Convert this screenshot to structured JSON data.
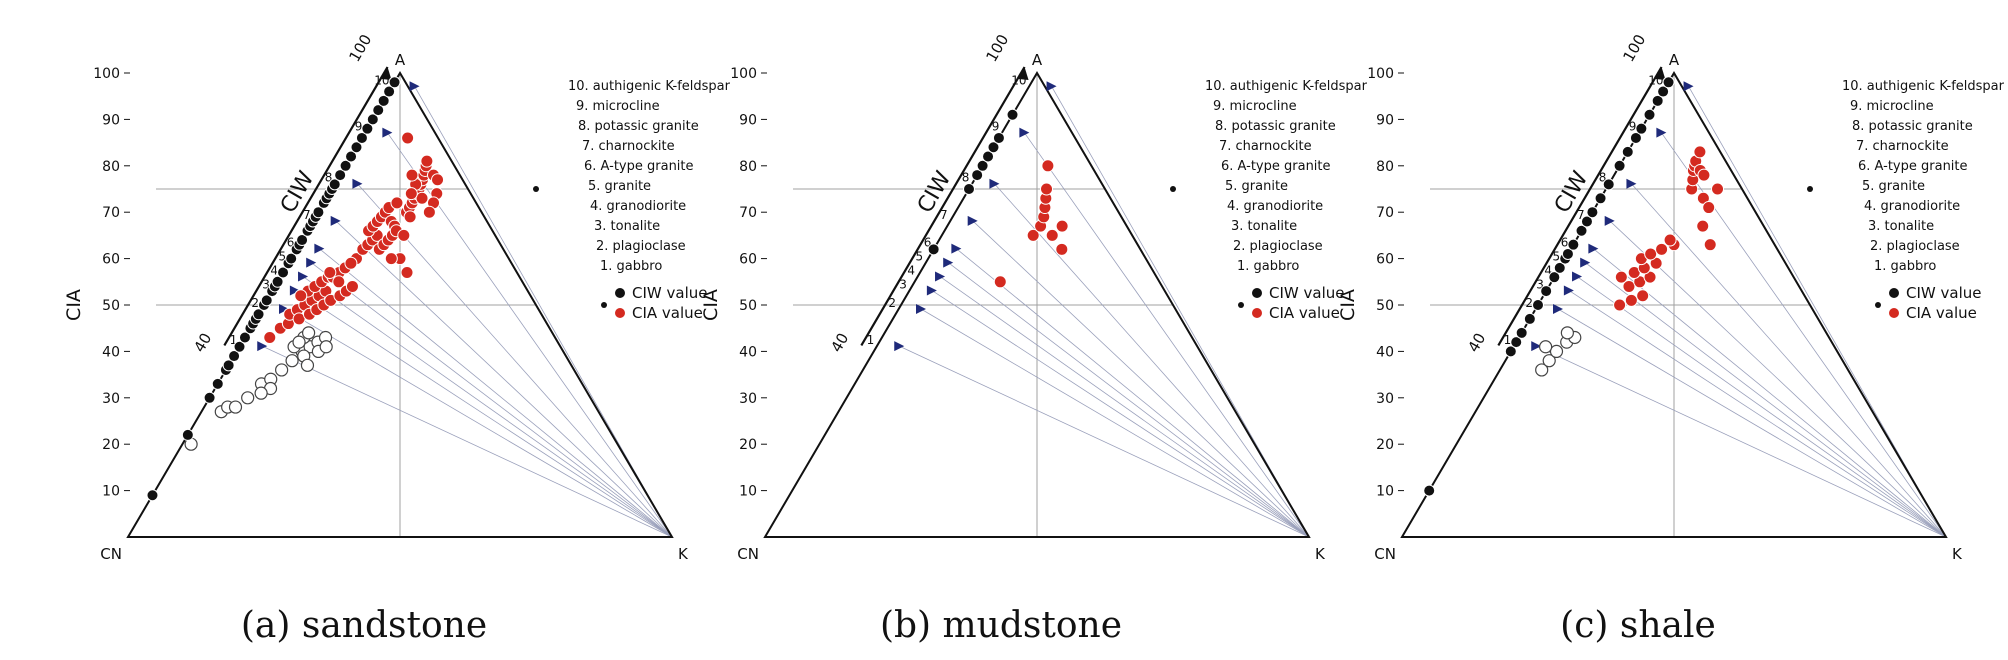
{
  "figure": {
    "ciw_arrow_start": "40",
    "ciw_arrow_end": "100",
    "mineral_list": [
      "10. authigenic K-feldspar",
      "9. microcline",
      "8. potassic granite",
      "7. charnockite",
      "6. A-type granite",
      "5. granite",
      "4. granodiorite",
      "3. tonalite",
      "2. plagioclase",
      "1. gabbro"
    ],
    "colors": {
      "ciw": "#111111",
      "cia": "#d42a20",
      "hollow": "#bdbdbd",
      "mineral_marker": "#1f2a7a",
      "tieline": "#9aa0bb"
    }
  },
  "chart_data": [
    {
      "type": "scatter",
      "subtype": "ternary A-CN-K",
      "caption": "(a)  sandstone",
      "vertices": {
        "top": "A",
        "bottom_left": "CN",
        "bottom_right": "K"
      },
      "ylabel": "CIA",
      "ciw_axis_label": "CIW",
      "ylim": [
        0,
        100
      ],
      "yticks": [
        "10",
        "20",
        "30",
        "40",
        "50",
        "60",
        "70",
        "80",
        "90",
        "100"
      ],
      "mineral_index_labels": [
        "1",
        "2",
        "3",
        "4",
        "5",
        "6",
        "7",
        "8",
        "9",
        "10"
      ],
      "mineral_ciw": [
        42,
        50,
        54,
        57,
        60,
        63,
        69,
        77,
        88,
        98
      ],
      "legend": [
        {
          "label": "CIW value",
          "series": "ciw"
        },
        {
          "label": "CIA value",
          "series": "cia"
        }
      ],
      "series": {
        "ciw": [
          9,
          22,
          30,
          33,
          36,
          37,
          39,
          41,
          43,
          45,
          46,
          47,
          48,
          50,
          51,
          53,
          54,
          55,
          57,
          59,
          60,
          62,
          63,
          64,
          66,
          67,
          68,
          69,
          70,
          72,
          73,
          74,
          75,
          76,
          78,
          80,
          82,
          84,
          86,
          88,
          90,
          92,
          94,
          96,
          98
        ],
        "cia": [
          [
            0.08,
            43
          ],
          [
            0.1,
            45
          ],
          [
            0.12,
            46
          ],
          [
            0.11,
            48
          ],
          [
            0.13,
            49
          ],
          [
            0.15,
            50
          ],
          [
            0.17,
            51
          ],
          [
            0.19,
            52
          ],
          [
            0.21,
            53
          ],
          [
            0.14,
            53
          ],
          [
            0.16,
            54
          ],
          [
            0.18,
            55
          ],
          [
            0.2,
            56
          ],
          [
            0.22,
            56
          ],
          [
            0.24,
            57
          ],
          [
            0.26,
            58
          ],
          [
            0.15,
            47
          ],
          [
            0.18,
            48
          ],
          [
            0.2,
            49
          ],
          [
            0.22,
            50
          ],
          [
            0.24,
            51
          ],
          [
            0.27,
            52
          ],
          [
            0.29,
            53
          ],
          [
            0.31,
            54
          ],
          [
            0.3,
            60
          ],
          [
            0.32,
            62
          ],
          [
            0.34,
            63
          ],
          [
            0.36,
            64
          ],
          [
            0.38,
            65
          ],
          [
            0.33,
            66
          ],
          [
            0.35,
            67
          ],
          [
            0.37,
            68
          ],
          [
            0.39,
            69
          ],
          [
            0.41,
            70
          ],
          [
            0.43,
            71
          ],
          [
            0.45,
            68
          ],
          [
            0.47,
            67
          ],
          [
            0.4,
            62
          ],
          [
            0.42,
            63
          ],
          [
            0.44,
            64
          ],
          [
            0.46,
            65
          ],
          [
            0.48,
            66
          ],
          [
            0.5,
            60
          ],
          [
            0.53,
            57
          ],
          [
            0.54,
            70
          ],
          [
            0.56,
            71
          ],
          [
            0.58,
            72
          ],
          [
            0.6,
            73
          ],
          [
            0.62,
            74
          ],
          [
            0.64,
            75
          ],
          [
            0.66,
            76
          ],
          [
            0.68,
            77
          ],
          [
            0.7,
            78
          ],
          [
            0.72,
            79
          ],
          [
            0.74,
            80
          ],
          [
            0.76,
            81
          ],
          [
            0.78,
            78
          ],
          [
            0.8,
            77
          ],
          [
            0.76,
            74
          ],
          [
            0.72,
            72
          ],
          [
            0.68,
            70
          ],
          [
            0.65,
            73
          ],
          [
            0.62,
            76
          ],
          [
            0.6,
            78
          ],
          [
            0.58,
            74
          ],
          [
            0.56,
            69
          ],
          [
            0.28,
            59
          ],
          [
            0.25,
            55
          ],
          [
            0.2,
            57
          ],
          [
            0.12,
            52
          ],
          [
            0.48,
            72
          ],
          [
            0.46,
            60
          ],
          [
            0.52,
            65
          ],
          [
            0.6,
            86
          ]
        ],
        "hollow": [
          [
            0.02,
            20
          ],
          [
            0.05,
            27
          ],
          [
            0.06,
            28
          ],
          [
            0.08,
            28
          ],
          [
            0.12,
            33
          ],
          [
            0.14,
            34
          ],
          [
            0.16,
            36
          ],
          [
            0.18,
            38
          ],
          [
            0.2,
            40
          ],
          [
            0.22,
            41
          ],
          [
            0.24,
            42
          ],
          [
            0.26,
            43
          ],
          [
            0.17,
            41
          ],
          [
            0.19,
            43
          ],
          [
            0.21,
            39
          ],
          [
            0.23,
            37
          ],
          [
            0.15,
            32
          ],
          [
            0.25,
            40
          ],
          [
            0.27,
            41
          ],
          [
            0.2,
            44
          ],
          [
            0.18,
            42
          ],
          [
            0.13,
            31
          ],
          [
            0.1,
            30
          ]
        ]
      }
    },
    {
      "type": "scatter",
      "subtype": "ternary A-CN-K",
      "caption": "(b)  mudstone",
      "vertices": {
        "top": "A",
        "bottom_left": "CN",
        "bottom_right": "K"
      },
      "ylabel": "CIA",
      "ciw_axis_label": "CIW",
      "ylim": [
        0,
        100
      ],
      "yticks": [
        "10",
        "20",
        "30",
        "40",
        "50",
        "60",
        "70",
        "80",
        "90",
        "100"
      ],
      "mineral_index_labels": [
        "1",
        "2",
        "3",
        "4",
        "5",
        "6",
        "7",
        "8",
        "9",
        "10"
      ],
      "mineral_ciw": [
        42,
        50,
        54,
        57,
        60,
        63,
        69,
        77,
        88,
        98
      ],
      "legend": [
        {
          "label": "CIW value",
          "series": "ciw"
        },
        {
          "label": "CIA value",
          "series": "cia"
        }
      ],
      "series": {
        "ciw": [
          62,
          75,
          78,
          80,
          82,
          84,
          86,
          91
        ],
        "cia": [
          [
            0.35,
            55
          ],
          [
            0.48,
            65
          ],
          [
            0.52,
            67
          ],
          [
            0.54,
            69
          ],
          [
            0.55,
            71
          ],
          [
            0.56,
            73
          ],
          [
            0.57,
            75
          ],
          [
            0.6,
            80
          ],
          [
            0.62,
            62
          ],
          [
            0.64,
            67
          ],
          [
            0.58,
            65
          ]
        ],
        "hollow": []
      }
    },
    {
      "type": "scatter",
      "subtype": "ternary A-CN-K",
      "caption": "(c)  shale",
      "vertices": {
        "top": "A",
        "bottom_left": "CN",
        "bottom_right": "K"
      },
      "ylabel": "CIA",
      "ciw_axis_label": "CIW",
      "ylim": [
        0,
        100
      ],
      "yticks": [
        "10",
        "20",
        "30",
        "40",
        "50",
        "60",
        "70",
        "80",
        "90",
        "100"
      ],
      "mineral_index_labels": [
        "1",
        "2",
        "3",
        "4",
        "5",
        "6",
        "7",
        "8",
        "9",
        "10"
      ],
      "mineral_ciw": [
        42,
        50,
        54,
        57,
        60,
        63,
        69,
        77,
        88,
        98
      ],
      "legend": [
        {
          "label": "CIW value",
          "series": "ciw"
        },
        {
          "label": "CIA value",
          "series": "cia"
        }
      ],
      "series": {
        "ciw": [
          10,
          40,
          42,
          44,
          47,
          50,
          53,
          56,
          58,
          60,
          61,
          63,
          66,
          68,
          70,
          73,
          76,
          80,
          83,
          86,
          88,
          91,
          94,
          96,
          98
        ],
        "cia": [
          [
            0.3,
            50
          ],
          [
            0.34,
            51
          ],
          [
            0.38,
            52
          ],
          [
            0.32,
            54
          ],
          [
            0.36,
            55
          ],
          [
            0.4,
            56
          ],
          [
            0.28,
            56
          ],
          [
            0.33,
            57
          ],
          [
            0.37,
            58
          ],
          [
            0.42,
            59
          ],
          [
            0.35,
            60
          ],
          [
            0.39,
            61
          ],
          [
            0.44,
            62
          ],
          [
            0.5,
            63
          ],
          [
            0.48,
            64
          ],
          [
            0.63,
            75
          ],
          [
            0.65,
            77
          ],
          [
            0.67,
            79
          ],
          [
            0.69,
            80
          ],
          [
            0.71,
            81
          ],
          [
            0.73,
            79
          ],
          [
            0.75,
            78
          ],
          [
            0.7,
            73
          ],
          [
            0.72,
            71
          ],
          [
            0.66,
            67
          ],
          [
            0.68,
            63
          ],
          [
            0.78,
            83
          ],
          [
            0.82,
            75
          ]
        ],
        "hollow": [
          [
            0.12,
            36
          ],
          [
            0.13,
            38
          ],
          [
            0.14,
            40
          ],
          [
            0.16,
            42
          ],
          [
            0.18,
            43
          ],
          [
            0.1,
            41
          ],
          [
            0.15,
            44
          ]
        ]
      }
    }
  ]
}
